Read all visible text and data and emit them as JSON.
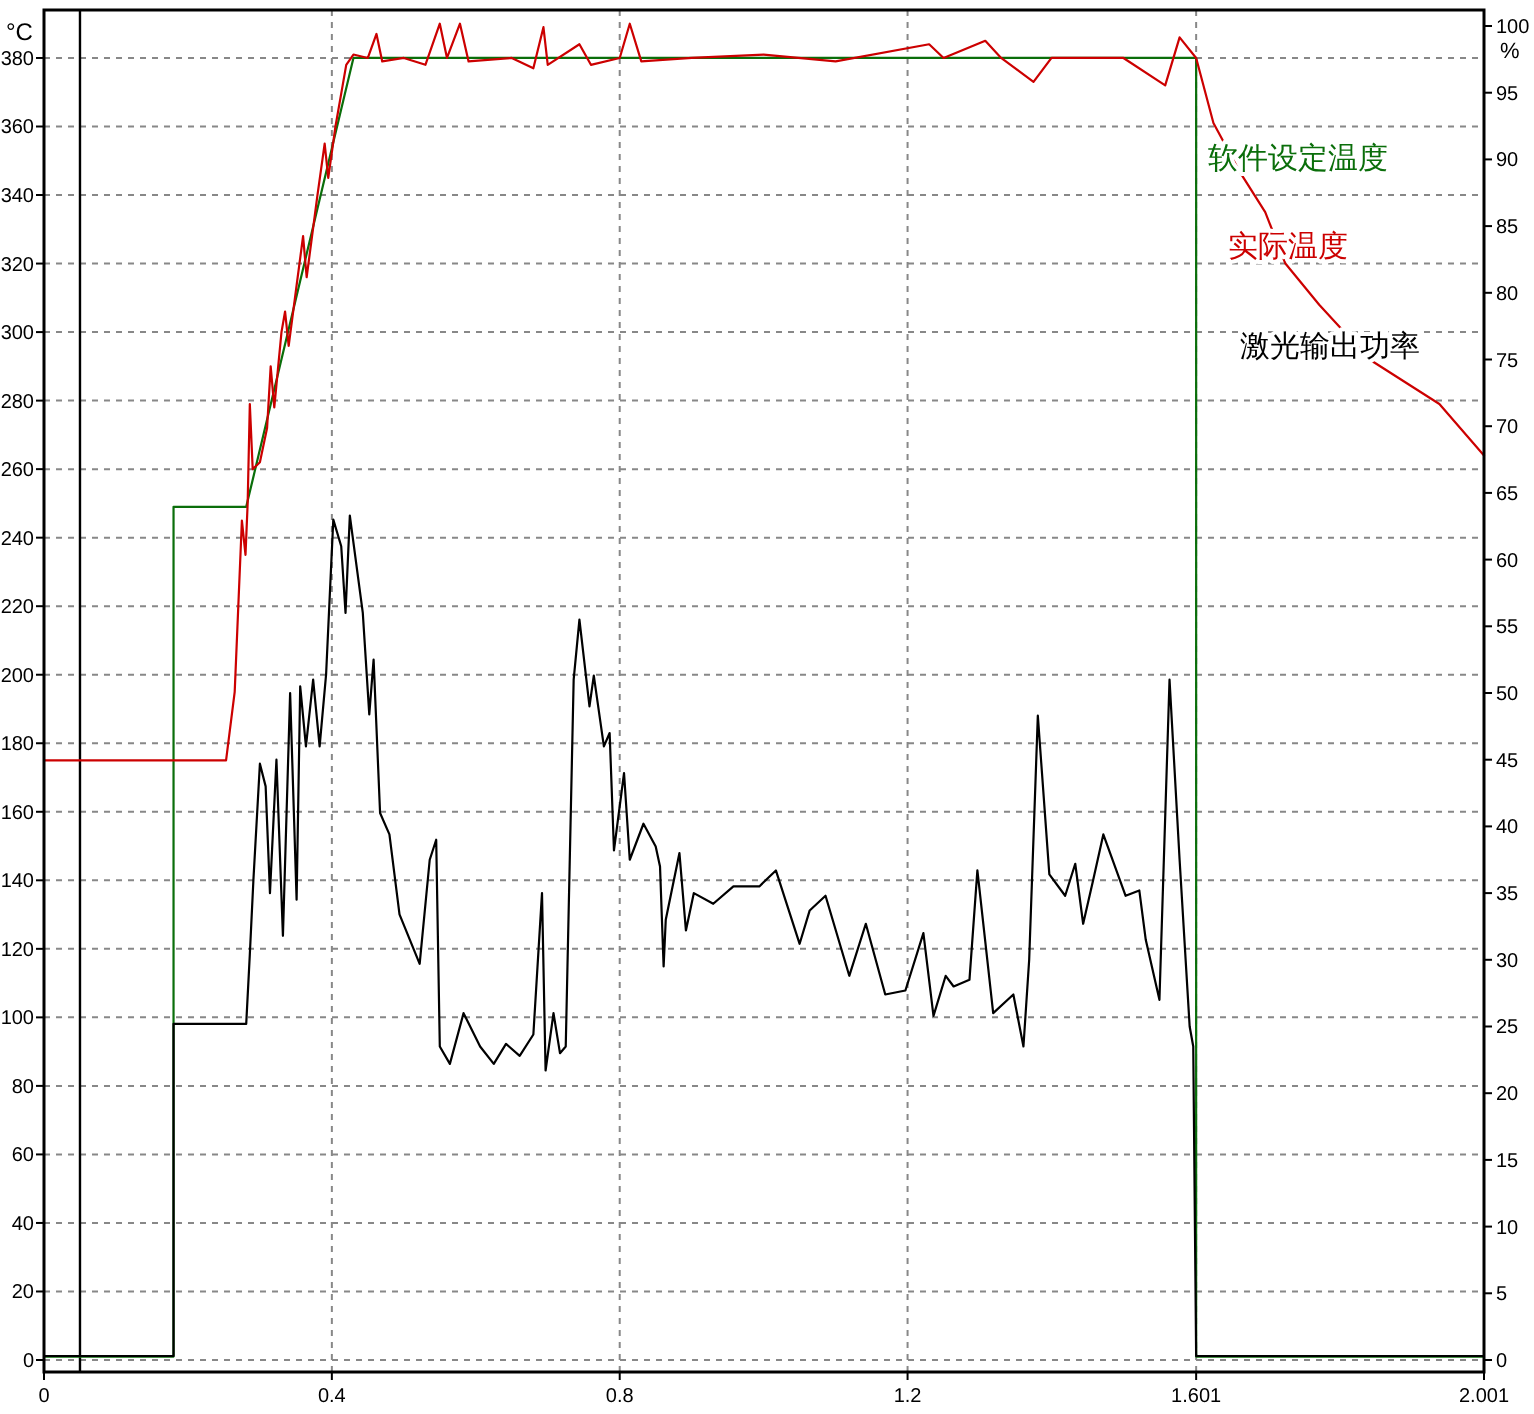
{
  "chart_data": {
    "type": "line",
    "ylabel": "°C",
    "y2label": "%",
    "xlim": [
      0,
      2.001
    ],
    "xticks": [
      0,
      0.4,
      0.8,
      1.2,
      1.601,
      2.001
    ],
    "ylim": [
      -3.5,
      394
    ],
    "yticks": [
      0,
      20,
      40,
      60,
      80,
      100,
      120,
      140,
      160,
      180,
      200,
      220,
      240,
      260,
      280,
      300,
      320,
      340,
      360,
      380
    ],
    "y2lim": [
      -0.9,
      101.2
    ],
    "y2ticks": [
      0,
      5,
      10,
      15,
      20,
      25,
      30,
      35,
      40,
      45,
      50,
      55,
      60,
      65,
      70,
      75,
      80,
      85,
      90,
      95,
      100
    ],
    "grid": true,
    "line_style": "solid",
    "ref_lines": [
      {
        "axis": "x",
        "value": 0.05,
        "color": "#000000"
      }
    ],
    "series": [
      {
        "name": "软件设定温度",
        "color": "#0a6e0a",
        "x": [
          0,
          0.18,
          0.18,
          0.281,
          0.43,
          1.601,
          1.601,
          2.001
        ],
        "values": [
          1,
          1,
          249,
          249,
          380,
          380,
          1,
          1
        ]
      },
      {
        "name": "实际温度",
        "color": "#cc0000",
        "x": [
          0,
          0.253,
          0.265,
          0.27,
          0.275,
          0.28,
          0.283,
          0.286,
          0.29,
          0.3,
          0.31,
          0.315,
          0.32,
          0.33,
          0.335,
          0.34,
          0.35,
          0.36,
          0.365,
          0.38,
          0.39,
          0.395,
          0.405,
          0.415,
          0.42,
          0.43,
          0.45,
          0.462,
          0.47,
          0.5,
          0.53,
          0.55,
          0.56,
          0.578,
          0.59,
          0.65,
          0.68,
          0.694,
          0.7,
          0.744,
          0.76,
          0.8,
          0.814,
          0.83,
          0.9,
          1.0,
          1.1,
          1.23,
          1.25,
          1.308,
          1.33,
          1.375,
          1.4,
          1.5,
          1.558,
          1.578,
          1.601,
          1.625,
          1.661,
          1.697,
          1.725,
          1.772,
          1.842,
          1.939,
          2.001
        ],
        "values": [
          175,
          175,
          195,
          220,
          245,
          235,
          250,
          279,
          260,
          262,
          272,
          290,
          278,
          300,
          306,
          296,
          312,
          328,
          316,
          340,
          355,
          345,
          360,
          372,
          378,
          381,
          380,
          387,
          379,
          380,
          378,
          390,
          380,
          390,
          379,
          380,
          377,
          389,
          378,
          384,
          378,
          380,
          390,
          379,
          380,
          381,
          379,
          384,
          380,
          385,
          380,
          373,
          380,
          380,
          372,
          386,
          380,
          361,
          347,
          335,
          320,
          308,
          292,
          279,
          264
        ]
      },
      {
        "name": "激光输出功率",
        "color": "#000000",
        "axis": "y2",
        "x": [
          0,
          0.18,
          0.18,
          0.281,
          0.286,
          0.291,
          0.3,
          0.308,
          0.314,
          0.323,
          0.332,
          0.342,
          0.351,
          0.356,
          0.364,
          0.374,
          0.383,
          0.392,
          0.402,
          0.413,
          0.419,
          0.425,
          0.443,
          0.452,
          0.458,
          0.467,
          0.48,
          0.494,
          0.522,
          0.536,
          0.545,
          0.55,
          0.564,
          0.583,
          0.606,
          0.625,
          0.642,
          0.661,
          0.68,
          0.692,
          0.697,
          0.708,
          0.717,
          0.725,
          0.736,
          0.744,
          0.758,
          0.764,
          0.778,
          0.786,
          0.792,
          0.806,
          0.814,
          0.833,
          0.85,
          0.856,
          0.861,
          0.864,
          0.883,
          0.892,
          0.903,
          0.93,
          0.958,
          0.994,
          1.017,
          1.05,
          1.064,
          1.086,
          1.119,
          1.142,
          1.169,
          1.197,
          1.222,
          1.236,
          1.253,
          1.264,
          1.286,
          1.297,
          1.319,
          1.347,
          1.361,
          1.369,
          1.381,
          1.397,
          1.419,
          1.433,
          1.444,
          1.458,
          1.472,
          1.503,
          1.522,
          1.531,
          1.55,
          1.564,
          1.578,
          1.592,
          1.597,
          1.601,
          2.001
        ],
        "values": [
          0.3,
          0.3,
          25.2,
          25.2,
          30.4,
          36,
          44.7,
          43,
          35,
          45,
          31.8,
          50,
          34.5,
          50.5,
          46,
          51,
          46,
          51.4,
          63,
          61,
          56,
          63.3,
          56,
          48.4,
          52.5,
          41,
          39.4,
          33.4,
          29.7,
          37.5,
          39,
          23.5,
          22.2,
          26,
          23.5,
          22.2,
          23.7,
          22.8,
          24.4,
          35,
          21.7,
          26,
          23,
          23.5,
          51,
          55.5,
          49,
          51.3,
          46,
          47,
          38.2,
          44,
          37.5,
          40.2,
          38.5,
          37,
          29.5,
          33,
          38,
          32.2,
          35,
          34.2,
          35.5,
          35.5,
          36.7,
          31.2,
          33.7,
          34.8,
          28.8,
          32.7,
          27.4,
          27.7,
          32,
          25.8,
          28.8,
          28,
          28.5,
          36.7,
          26,
          27.4,
          23.5,
          30,
          48.3,
          36.4,
          34.8,
          37.2,
          32.7,
          36,
          39.4,
          34.8,
          35.2,
          31.5,
          27,
          51,
          37.5,
          25,
          23.5,
          0.3,
          0.3
        ]
      }
    ]
  }
}
